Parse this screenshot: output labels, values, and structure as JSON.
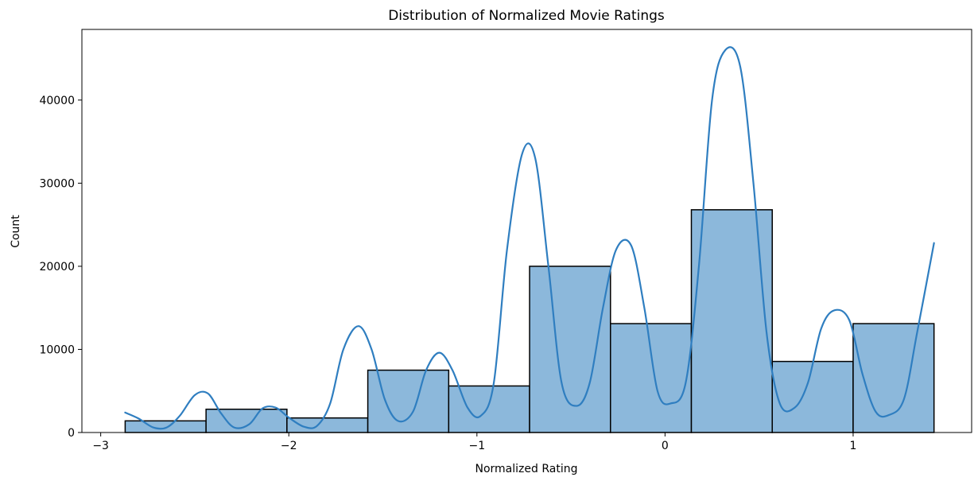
{
  "chart_data": {
    "type": "bar",
    "title": "Distribution of Normalized Movie Ratings",
    "xlabel": "Normalized Rating",
    "ylabel": "Count",
    "xlim": [
      -3.1,
      1.63
    ],
    "ylim": [
      0,
      48500
    ],
    "xticks": [
      {
        "value": -3,
        "label": "−3"
      },
      {
        "value": -2,
        "label": "−2"
      },
      {
        "value": -1,
        "label": "−1"
      },
      {
        "value": 0,
        "label": "0"
      },
      {
        "value": 1,
        "label": "1"
      }
    ],
    "yticks": [
      {
        "value": 0,
        "label": "0"
      },
      {
        "value": 10000,
        "label": "10000"
      },
      {
        "value": 20000,
        "label": "20000"
      },
      {
        "value": 30000,
        "label": "30000"
      },
      {
        "value": 40000,
        "label": "40000"
      }
    ],
    "grid": false,
    "legend": false,
    "bar_color": "#8cb8db",
    "bar_edge_color": "#000000",
    "kde_color": "#2f7ec0",
    "bins": [
      {
        "x0": -2.87,
        "x1": -2.44,
        "count": 1400
      },
      {
        "x0": -2.44,
        "x1": -2.01,
        "count": 2800
      },
      {
        "x0": -2.01,
        "x1": -1.58,
        "count": 1750
      },
      {
        "x0": -1.58,
        "x1": -1.15,
        "count": 7500
      },
      {
        "x0": -1.15,
        "x1": -0.72,
        "count": 5600
      },
      {
        "x0": -0.72,
        "x1": -0.29,
        "count": 20000
      },
      {
        "x0": -0.29,
        "x1": 0.14,
        "count": 13100
      },
      {
        "x0": 0.14,
        "x1": 0.57,
        "count": 26800
      },
      {
        "x0": 0.57,
        "x1": 1.0,
        "count": 8550
      },
      {
        "x0": 1.0,
        "x1": 1.43,
        "count": 13100
      }
    ],
    "kde": {
      "x": [
        -2.87,
        -2.8,
        -2.72,
        -2.65,
        -2.58,
        -2.5,
        -2.43,
        -2.36,
        -2.29,
        -2.21,
        -2.14,
        -2.07,
        -2.0,
        -1.92,
        -1.85,
        -1.78,
        -1.71,
        -1.63,
        -1.56,
        -1.49,
        -1.42,
        -1.34,
        -1.27,
        -1.2,
        -1.13,
        -1.05,
        -0.98,
        -0.91,
        -0.84,
        -0.76,
        -0.69,
        -0.62,
        -0.55,
        -0.47,
        -0.4,
        -0.33,
        -0.26,
        -0.18,
        -0.11,
        -0.04,
        0.03,
        0.11,
        0.18,
        0.25,
        0.32,
        0.4,
        0.47,
        0.54,
        0.61,
        0.69,
        0.76,
        0.83,
        0.9,
        0.98,
        1.05,
        1.12,
        1.19,
        1.27,
        1.34,
        1.43
      ],
      "y": [
        2400,
        1700,
        600,
        600,
        2000,
        4500,
        4700,
        2300,
        600,
        1000,
        2900,
        3000,
        1800,
        700,
        800,
        3500,
        10000,
        12800,
        10000,
        4000,
        1400,
        2500,
        7500,
        9600,
        7500,
        3000,
        2000,
        6000,
        22000,
        33500,
        33000,
        20000,
        6000,
        3200,
        6000,
        15000,
        22000,
        22500,
        15000,
        5000,
        3500,
        6000,
        20000,
        40000,
        46000,
        44000,
        30000,
        12000,
        3500,
        3000,
        6000,
        12500,
        14700,
        13500,
        7000,
        2500,
        2100,
        4000,
        12000,
        22800
      ]
    }
  }
}
